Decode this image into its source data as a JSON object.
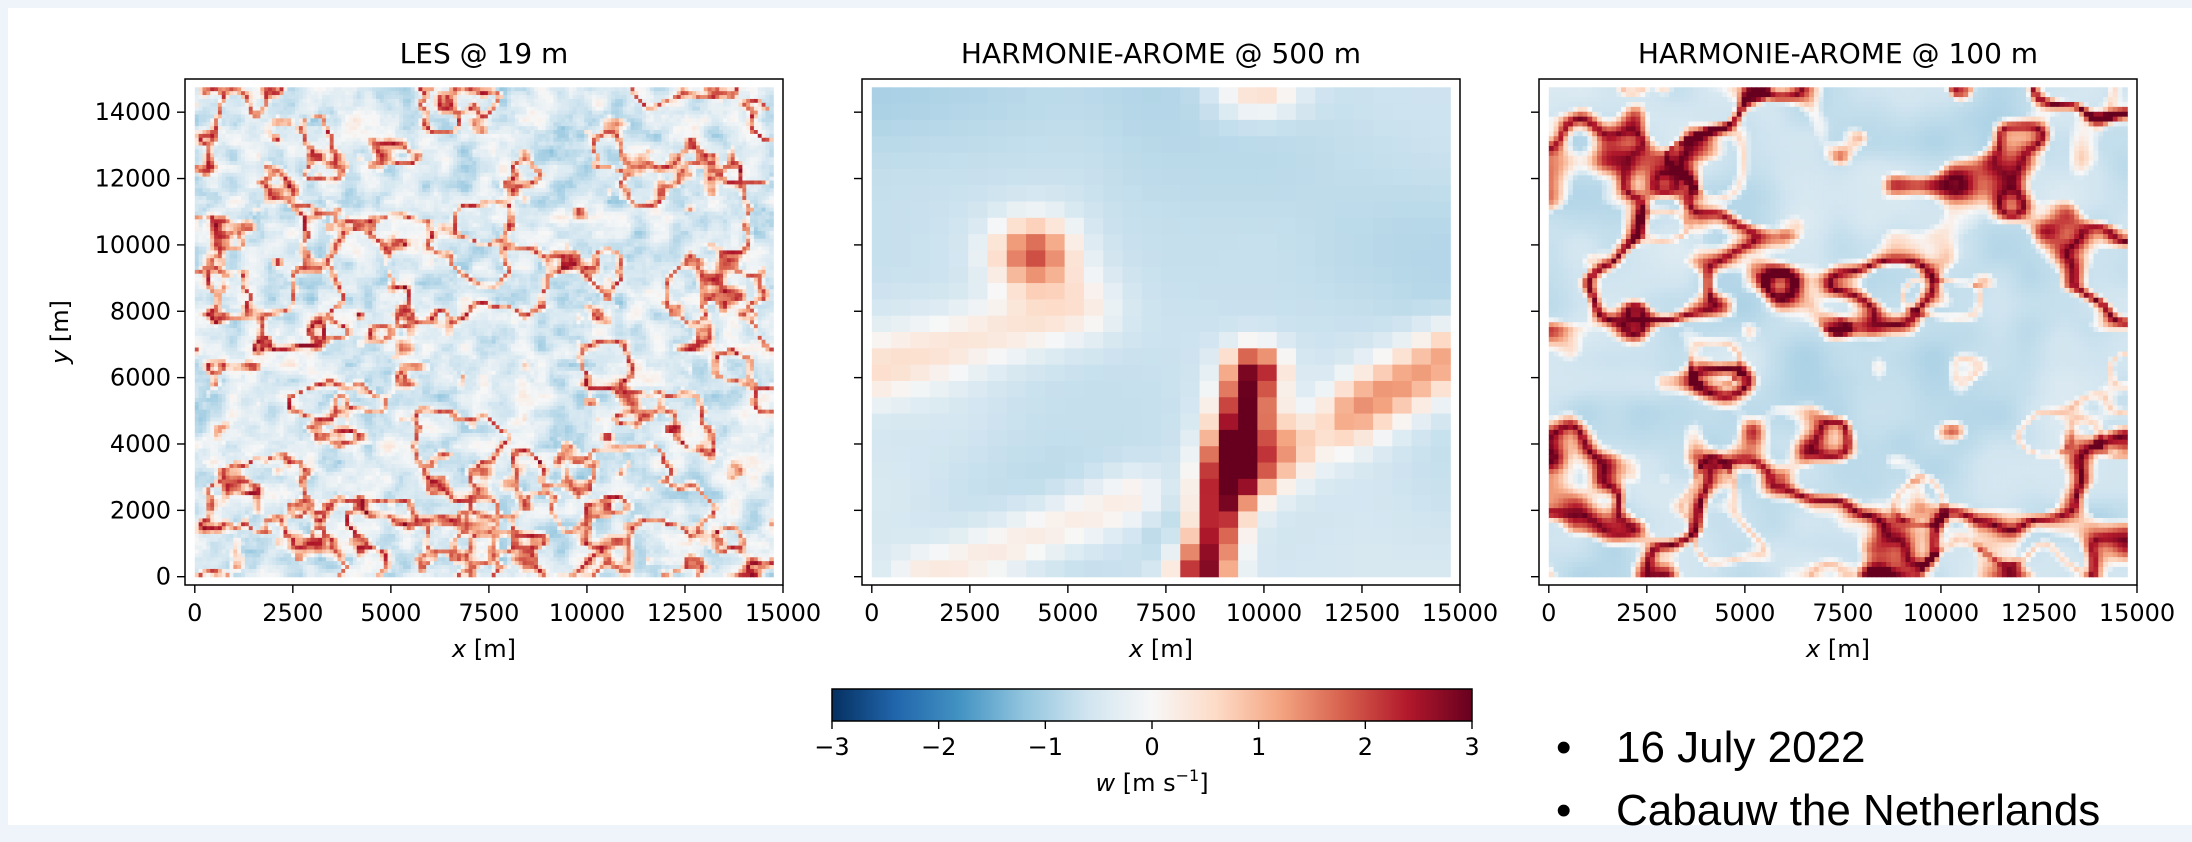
{
  "chart_data": {
    "type": "heatmap",
    "panels": [
      {
        "title": "LES @ 19 m",
        "xlabel_italic": "x",
        "xlabel_unit": " [m]",
        "ylabel_italic": "y",
        "ylabel_unit": " [m]",
        "style": "les"
      },
      {
        "title": "HARMONIE-AROME @ 500 m",
        "xlabel_italic": "x",
        "xlabel_unit": " [m]",
        "style": "h500"
      },
      {
        "title": "HARMONIE-AROME @ 100 m",
        "xlabel_italic": "x",
        "xlabel_unit": " [m]",
        "style": "h100"
      }
    ],
    "x_ticks": [
      "0",
      "2500",
      "5000",
      "7500",
      "10000",
      "12500",
      "15000"
    ],
    "x_tick_values": [
      0,
      2500,
      5000,
      7500,
      10000,
      12500,
      15000
    ],
    "y_ticks": [
      "0",
      "2000",
      "4000",
      "6000",
      "8000",
      "10000",
      "12000",
      "14000"
    ],
    "y_tick_values": [
      0,
      2000,
      4000,
      6000,
      8000,
      10000,
      12000,
      14000
    ],
    "xlim": [
      -250,
      15000
    ],
    "ylim": [
      -250,
      15000
    ],
    "colorbar": {
      "label_italic": "w",
      "label_unit": " [m s",
      "label_sup": "−1",
      "label_close": "]",
      "ticks": [
        "−3",
        "−2",
        "−1",
        "0",
        "1",
        "2",
        "3"
      ],
      "tick_values": [
        -3,
        -2,
        -1,
        0,
        1,
        2,
        3
      ],
      "range": [
        -3,
        3
      ],
      "colormap": "RdBu_r",
      "stops": [
        "#053061",
        "#2166ac",
        "#4393c3",
        "#92c5de",
        "#d1e5f0",
        "#f7f7f7",
        "#fddbc7",
        "#f4a582",
        "#d6604d",
        "#b2182b",
        "#67001f"
      ]
    }
  },
  "bullets": [
    "16 July 2022",
    "Cabauw the Netherlands"
  ],
  "bullet_glyph": "•"
}
